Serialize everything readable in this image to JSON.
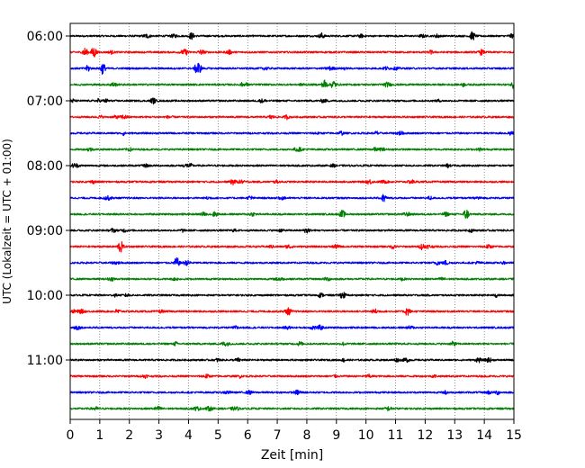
{
  "chart_data": {
    "type": "line",
    "title": "",
    "xlabel": "Zeit  [min]",
    "ylabel": "UTC (Lokalzeit = UTC + 01:00)",
    "xlim": [
      0,
      15
    ],
    "x_ticks": [
      0,
      1,
      2,
      3,
      4,
      5,
      6,
      7,
      8,
      9,
      10,
      11,
      12,
      13,
      14,
      15
    ],
    "x_tick_labels": [
      "0",
      "1",
      "2",
      "3",
      "4",
      "5",
      "6",
      "7",
      "8",
      "9",
      "10",
      "11",
      "12",
      "13",
      "14",
      "15"
    ],
    "y_tick_labels": [
      "06:00",
      "07:00",
      "08:00",
      "09:00",
      "10:00",
      "11:00"
    ],
    "grid": "vertical dotted at each minute",
    "trace_interval_minutes": 15,
    "trace_count": 24,
    "trace_start_times": [
      "06:00",
      "06:15",
      "06:30",
      "06:45",
      "07:00",
      "07:15",
      "07:30",
      "07:45",
      "08:00",
      "08:15",
      "08:30",
      "08:45",
      "09:00",
      "09:15",
      "09:30",
      "09:45",
      "10:00",
      "10:15",
      "10:30",
      "10:45",
      "11:00",
      "11:15",
      "11:30",
      "11:45"
    ],
    "color_cycle": [
      "#000000",
      "#ff0000",
      "#0000ff",
      "#008000"
    ],
    "events": [
      {
        "trace": 0,
        "t": 4.1,
        "amp": 0.35
      },
      {
        "trace": 0,
        "t": 8.5,
        "amp": 0.3
      },
      {
        "trace": 0,
        "t": 13.6,
        "amp": 0.45
      },
      {
        "trace": 1,
        "t": 0.5,
        "amp": 0.45
      },
      {
        "trace": 1,
        "t": 0.8,
        "amp": 0.6
      },
      {
        "trace": 1,
        "t": 13.9,
        "amp": 0.25
      },
      {
        "trace": 2,
        "t": 0.6,
        "amp": 0.3
      },
      {
        "trace": 2,
        "t": 1.1,
        "amp": 0.6
      },
      {
        "trace": 2,
        "t": 4.3,
        "amp": 0.75
      },
      {
        "trace": 3,
        "t": 8.6,
        "amp": 0.5
      },
      {
        "trace": 3,
        "t": 8.9,
        "amp": 0.45
      },
      {
        "trace": 3,
        "t": 15.0,
        "amp": 0.4
      },
      {
        "trace": 4,
        "t": 2.8,
        "amp": 0.3
      },
      {
        "trace": 9,
        "t": 5.5,
        "amp": 0.3
      },
      {
        "trace": 10,
        "t": 10.6,
        "amp": 0.4
      },
      {
        "trace": 11,
        "t": 9.2,
        "amp": 0.4
      },
      {
        "trace": 11,
        "t": 13.4,
        "amp": 0.4
      },
      {
        "trace": 12,
        "t": 8.0,
        "amp": 0.3
      },
      {
        "trace": 13,
        "t": 1.7,
        "amp": 0.65
      },
      {
        "trace": 13,
        "t": 11.9,
        "amp": 0.3
      },
      {
        "trace": 14,
        "t": 3.6,
        "amp": 0.55
      },
      {
        "trace": 17,
        "t": 7.4,
        "amp": 0.3
      },
      {
        "trace": 17,
        "t": 11.4,
        "amp": 0.45
      },
      {
        "trace": 20,
        "t": 13.8,
        "amp": 0.25
      }
    ]
  }
}
